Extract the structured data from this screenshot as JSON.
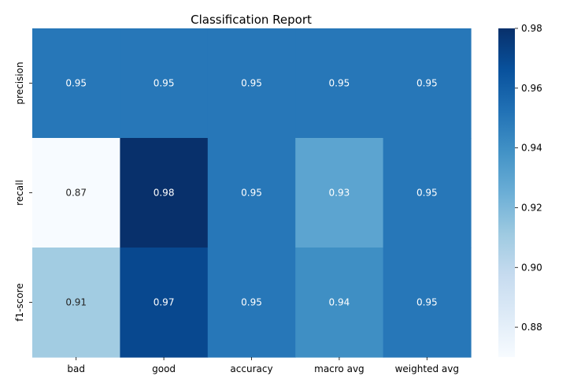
{
  "chart_data": {
    "type": "heatmap",
    "title": "Classification Report",
    "xlabel": "",
    "ylabel": "",
    "columns": [
      "bad",
      "good",
      "accuracy",
      "macro avg",
      "weighted avg"
    ],
    "rows": [
      "precision",
      "recall",
      "f1-score"
    ],
    "values": [
      [
        0.95,
        0.95,
        0.95,
        0.95,
        0.95
      ],
      [
        0.87,
        0.98,
        0.95,
        0.93,
        0.95
      ],
      [
        0.91,
        0.97,
        0.95,
        0.94,
        0.95
      ]
    ],
    "colormap": "Blues",
    "vmin": 0.87,
    "vmax": 0.98,
    "colorbar_ticks": [
      "0.98",
      "0.96",
      "0.94",
      "0.92",
      "0.90",
      "0.88"
    ],
    "colorbar_tick_values": [
      0.98,
      0.96,
      0.94,
      0.92,
      0.9,
      0.88
    ],
    "grid": false,
    "legend": "colorbar-right"
  }
}
